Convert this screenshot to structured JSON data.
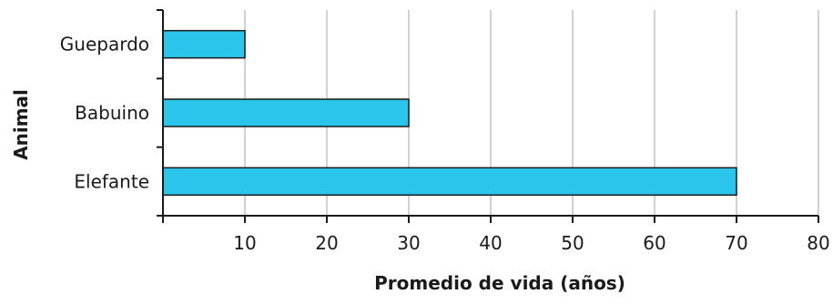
{
  "chart_data": {
    "type": "bar",
    "orientation": "horizontal",
    "categories": [
      "Guepardo",
      "Babuino",
      "Elefante"
    ],
    "values": [
      10,
      30,
      70
    ],
    "xlabel": "Promedio de vida (años)",
    "ylabel": "Animal",
    "xlim": [
      0,
      80
    ],
    "xticks": [
      10,
      20,
      30,
      40,
      50,
      60,
      70,
      80
    ],
    "grid": "vertical",
    "bar_color": "#2bc4ea",
    "bar_edge_color": "#1a1a1a"
  }
}
